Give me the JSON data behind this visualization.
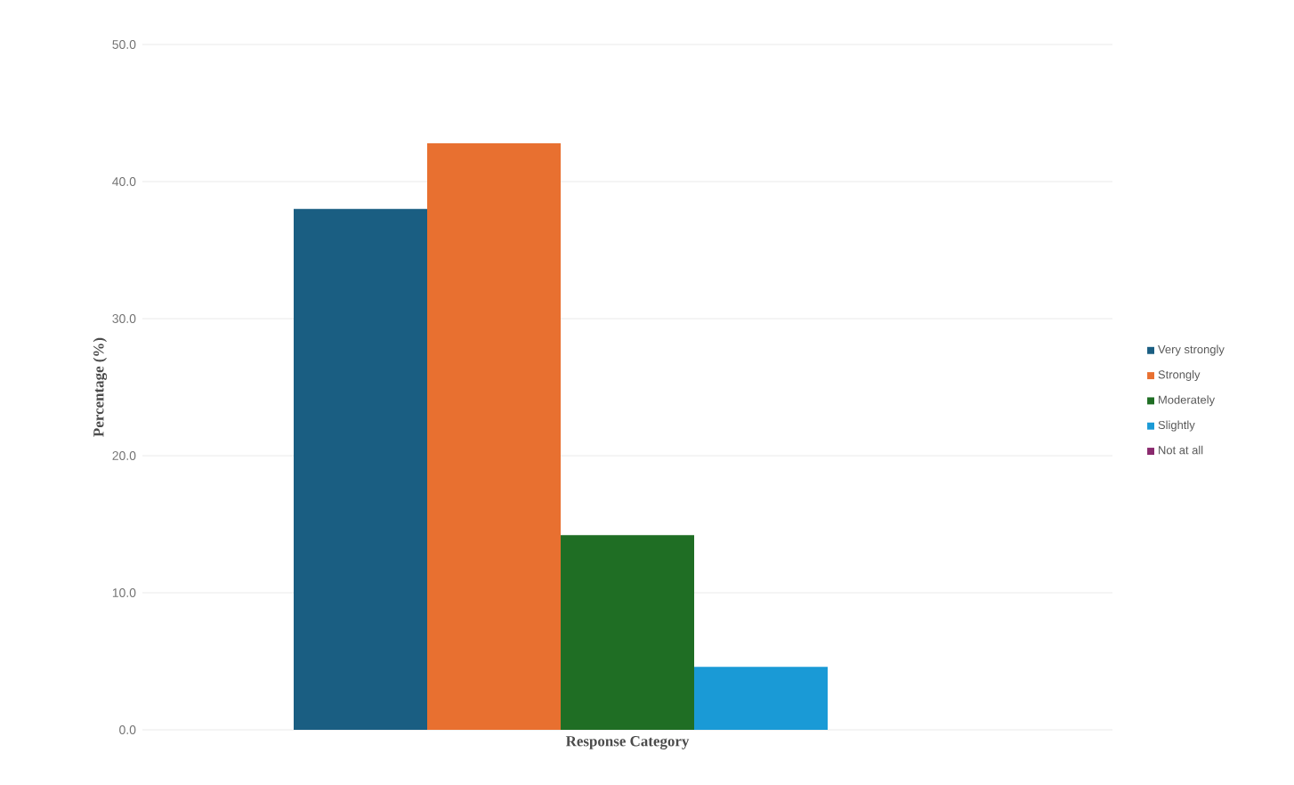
{
  "chart_data": {
    "type": "bar",
    "xlabel": "Response Category",
    "ylabel": "Percentage (%)",
    "categories": [
      null
    ],
    "series": [
      {
        "name": "Very strongly",
        "color": "#1a5e82",
        "values": [
          38.0
        ]
      },
      {
        "name": "Strongly",
        "color": "#e87030",
        "values": [
          42.8
        ]
      },
      {
        "name": "Moderately",
        "color": "#1f6e24",
        "values": [
          14.2
        ]
      },
      {
        "name": "Slightly",
        "color": "#1a9ad6",
        "values": [
          4.6
        ]
      },
      {
        "name": "Not at all",
        "color": "#8a2a6e",
        "values": [
          0
        ]
      }
    ],
    "ylim": [
      0,
      50
    ],
    "yticks": [
      {
        "value": 0,
        "label": "0.0"
      },
      {
        "value": 10,
        "label": "10.0"
      },
      {
        "value": 20,
        "label": "20.0"
      },
      {
        "value": 30,
        "label": "30.0"
      },
      {
        "value": 40,
        "label": "40.0"
      },
      {
        "value": 50,
        "label": "50.0"
      }
    ],
    "grid": "y",
    "legend": "right"
  }
}
